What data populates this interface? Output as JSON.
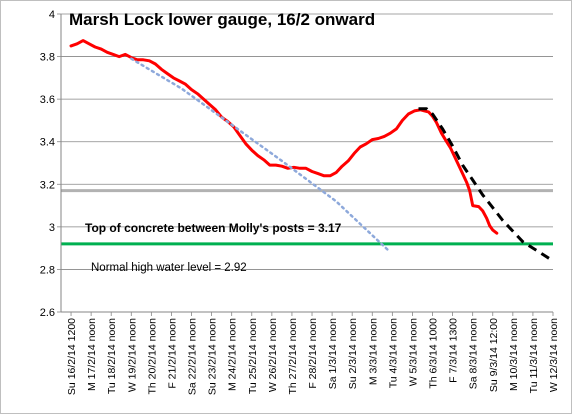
{
  "chart_data": {
    "type": "line",
    "title": "Marsh Lock lower gauge,  16/2 onward",
    "xlabel": "",
    "ylabel": "",
    "ylim": [
      2.6,
      4
    ],
    "yticks": [
      "4",
      "3.8",
      "3.6",
      "3.4",
      "3.2",
      "3",
      "2.8",
      "2.6"
    ],
    "ytick_values": [
      4,
      3.8,
      3.6,
      3.4,
      3.2,
      3,
      2.8,
      2.6
    ],
    "grid": "horizontal",
    "legend": "none",
    "categories": [
      "Su 16/2/14 1200",
      "M 17/2/14 noon",
      "Tu 18/2/14 noon",
      "W 19/2/14 noon",
      "Th 20/2/14 noon",
      "F 21/2/14 noon",
      "Sa 22/2/14 noon",
      "Su 23/2/14 noon",
      "M 24/2/14 noon",
      "Tu 25/2/14 noon",
      "W 26/2/14 noon",
      "Th 27/2/14 noon",
      "F 28/2/14 noon",
      "Sa 1/3/14 noon",
      "Su 2/3/14 noon",
      "M 3/3/14 noon",
      "Tu 4/3/14 noon",
      "W 5/3/14 noon",
      "Th 6/3/14 1000",
      "F 7/3/14 1300",
      "Sa 8/3/14 noon",
      "Su 9/3/14 12:00",
      "M 10/3/14 noon",
      "Tu 11/3/14 noon",
      "W 12/3/14 noon"
    ],
    "series": [
      {
        "color": "#ff0000",
        "style": "solid",
        "points": [
          [
            0,
            3.85
          ],
          [
            0.3,
            3.86
          ],
          [
            0.6,
            3.875
          ],
          [
            0.9,
            3.86
          ],
          [
            1.2,
            3.845
          ],
          [
            1.5,
            3.835
          ],
          [
            1.8,
            3.82
          ],
          [
            2.1,
            3.81
          ],
          [
            2.4,
            3.8
          ],
          [
            2.7,
            3.81
          ],
          [
            3.0,
            3.795
          ],
          [
            3.3,
            3.785
          ],
          [
            3.6,
            3.785
          ],
          [
            3.9,
            3.78
          ],
          [
            4.2,
            3.765
          ],
          [
            4.5,
            3.74
          ],
          [
            4.8,
            3.72
          ],
          [
            5.1,
            3.7
          ],
          [
            5.4,
            3.685
          ],
          [
            5.7,
            3.67
          ],
          [
            6.0,
            3.645
          ],
          [
            6.3,
            3.625
          ],
          [
            6.6,
            3.6
          ],
          [
            6.9,
            3.575
          ],
          [
            7.2,
            3.55
          ],
          [
            7.5,
            3.515
          ],
          [
            7.8,
            3.495
          ],
          [
            8.1,
            3.47
          ],
          [
            8.4,
            3.43
          ],
          [
            8.7,
            3.39
          ],
          [
            9.0,
            3.36
          ],
          [
            9.3,
            3.335
          ],
          [
            9.6,
            3.315
          ],
          [
            9.9,
            3.29
          ],
          [
            10.2,
            3.29
          ],
          [
            10.5,
            3.285
          ],
          [
            10.8,
            3.275
          ],
          [
            11.1,
            3.28
          ],
          [
            11.4,
            3.275
          ],
          [
            11.7,
            3.275
          ],
          [
            12.0,
            3.26
          ],
          [
            12.3,
            3.25
          ],
          [
            12.6,
            3.24
          ],
          [
            12.9,
            3.24
          ],
          [
            13.2,
            3.255
          ],
          [
            13.5,
            3.285
          ],
          [
            13.8,
            3.31
          ],
          [
            14.1,
            3.345
          ],
          [
            14.4,
            3.375
          ],
          [
            14.7,
            3.39
          ],
          [
            15.0,
            3.41
          ],
          [
            15.3,
            3.415
          ],
          [
            15.6,
            3.425
          ],
          [
            15.9,
            3.44
          ],
          [
            16.2,
            3.46
          ],
          [
            16.5,
            3.5
          ],
          [
            16.8,
            3.53
          ],
          [
            17.1,
            3.545
          ],
          [
            17.4,
            3.55
          ],
          [
            17.6,
            3.545
          ],
          [
            17.8,
            3.54
          ],
          [
            18.0,
            3.52
          ],
          [
            18.2,
            3.49
          ],
          [
            18.45,
            3.44
          ],
          [
            18.7,
            3.4
          ],
          [
            18.9,
            3.37
          ],
          [
            19.1,
            3.33
          ],
          [
            19.3,
            3.29
          ],
          [
            19.5,
            3.25
          ],
          [
            19.7,
            3.21
          ],
          [
            19.85,
            3.17
          ],
          [
            20.0,
            3.1
          ],
          [
            20.3,
            3.095
          ],
          [
            20.5,
            3.075
          ],
          [
            20.7,
            3.04
          ],
          [
            20.85,
            3.005
          ],
          [
            21.0,
            2.985
          ],
          [
            21.2,
            2.97
          ]
        ]
      },
      {
        "color": "#000000",
        "style": "dashed",
        "points": [
          [
            17.3,
            3.555
          ],
          [
            17.7,
            3.555
          ],
          [
            18.0,
            3.53
          ],
          [
            18.5,
            3.46
          ],
          [
            19.0,
            3.38
          ],
          [
            19.5,
            3.29
          ],
          [
            20.0,
            3.22
          ],
          [
            20.5,
            3.15
          ],
          [
            21.0,
            3.09
          ],
          [
            21.5,
            3.03
          ],
          [
            22.0,
            2.98
          ],
          [
            22.5,
            2.93
          ],
          [
            23.0,
            2.9
          ],
          [
            23.5,
            2.87
          ],
          [
            24.0,
            2.84
          ]
        ]
      },
      {
        "color": "#8ea9db",
        "style": "dotted",
        "points": [
          [
            3.0,
            3.79
          ],
          [
            5.5,
            3.65
          ],
          [
            8.0,
            3.48
          ],
          [
            10.5,
            3.31
          ],
          [
            13.2,
            3.12
          ],
          [
            15.8,
            2.89
          ]
        ]
      }
    ],
    "reference_lines": [
      {
        "y": 3.17,
        "color": "#b2b2b2",
        "label": "Top of concrete between Molly's posts = 3.17"
      },
      {
        "y": 2.92,
        "color": "#00b050",
        "label": "Normal high water level = 2.92"
      }
    ]
  }
}
